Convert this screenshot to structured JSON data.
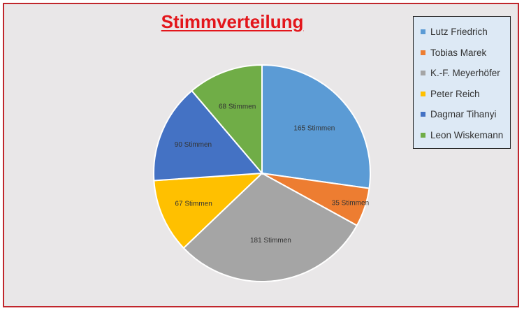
{
  "chart_data": {
    "type": "pie",
    "title": "Stimmverteilung",
    "legend_position": "top-right",
    "slices": [
      {
        "name": "Lutz Friedrich",
        "value": 165,
        "label": "165 Stimmen",
        "color": "#5b9bd5"
      },
      {
        "name": "Tobias Marek",
        "value": 35,
        "label": "35 Stimmen",
        "color": "#ed7d31"
      },
      {
        "name": "K.-F. Meyerhöfer",
        "value": 181,
        "label": "181 Stimmen",
        "color": "#a5a5a5"
      },
      {
        "name": "Peter Reich",
        "value": 67,
        "label": "67 Stimmen",
        "color": "#ffc000"
      },
      {
        "name": "Dagmar Tihanyi",
        "value": 90,
        "label": "90 Stimmen",
        "color": "#4472c4"
      },
      {
        "name": "Leon Wiskemann",
        "value": 68,
        "label": "68 Stimmen",
        "color": "#70ad47"
      }
    ]
  },
  "colors": {
    "title": "#e3161b",
    "frame_border": "#c0262c",
    "background": "#e9e7e8",
    "legend_background": "#dde9f5"
  }
}
